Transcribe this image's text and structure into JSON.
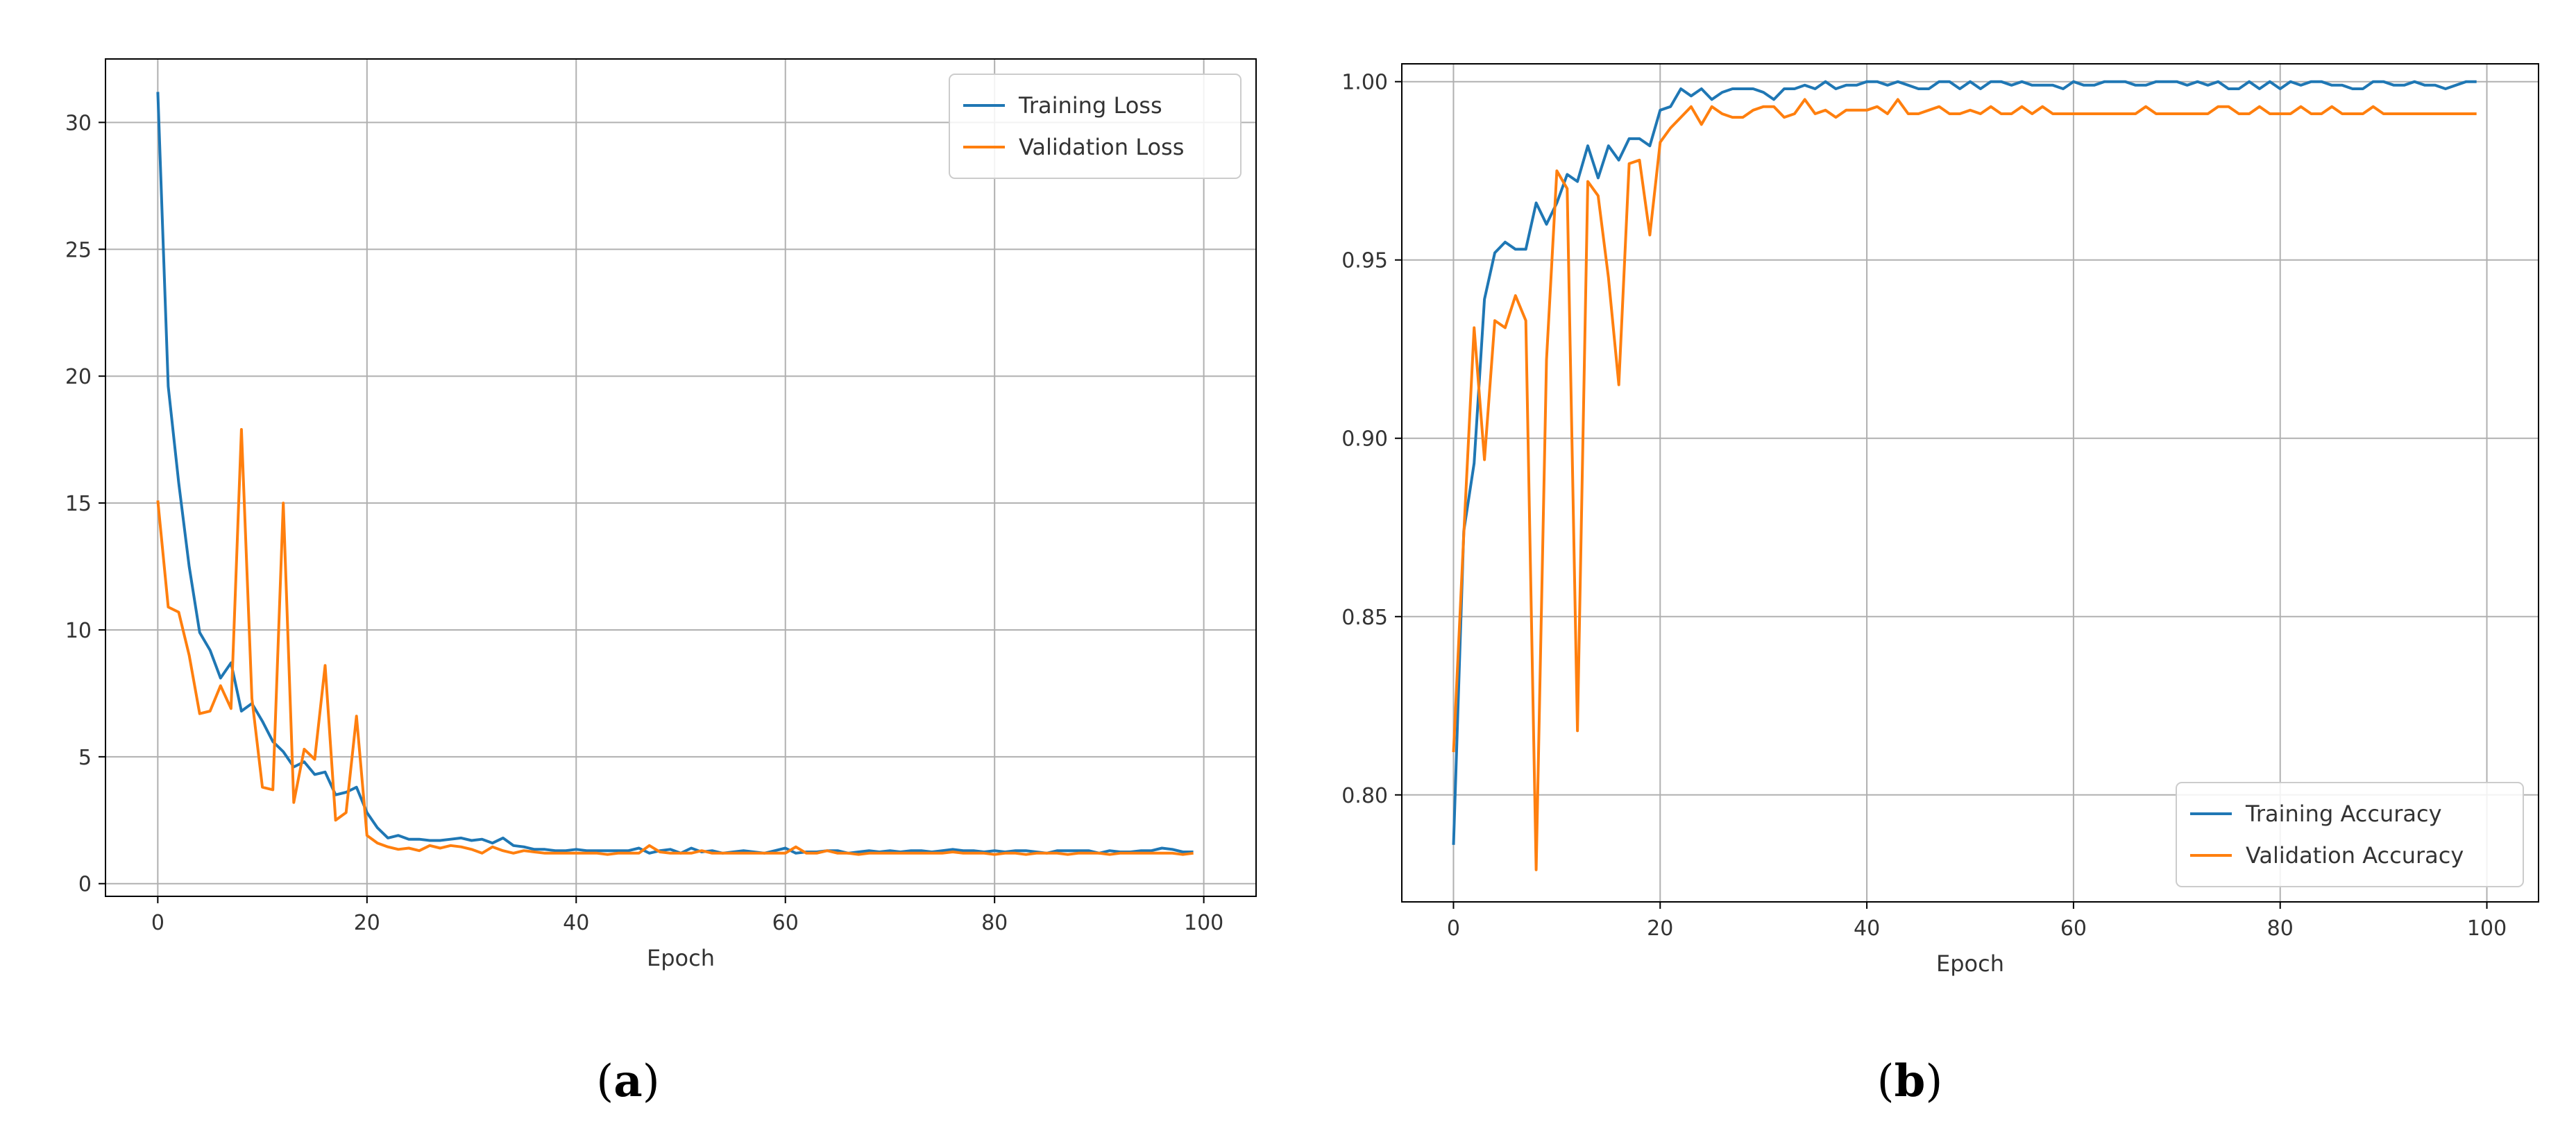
{
  "chart_data": [
    {
      "type": "line",
      "panel_label": "a",
      "title": "",
      "xlabel": "Epoch",
      "ylabel": "",
      "xlim": [
        -5,
        105
      ],
      "ylim": [
        -0.5,
        32.5
      ],
      "xticks": [
        0,
        20,
        40,
        60,
        80,
        100
      ],
      "yticks": [
        0,
        5,
        10,
        15,
        20,
        25,
        30
      ],
      "grid": true,
      "legend": "top-right",
      "x_start": 0,
      "series": [
        {
          "name": "Training Loss",
          "color": "#1f77b4",
          "values": [
            31.2,
            19.6,
            15.8,
            12.5,
            9.9,
            9.2,
            8.1,
            8.7,
            6.8,
            7.1,
            6.4,
            5.6,
            5.2,
            4.6,
            4.8,
            4.3,
            4.4,
            3.5,
            3.6,
            3.8,
            2.8,
            2.2,
            1.8,
            1.9,
            1.75,
            1.75,
            1.7,
            1.7,
            1.75,
            1.8,
            1.7,
            1.75,
            1.6,
            1.8,
            1.5,
            1.45,
            1.35,
            1.35,
            1.3,
            1.3,
            1.35,
            1.3,
            1.3,
            1.3,
            1.3,
            1.3,
            1.4,
            1.2,
            1.3,
            1.35,
            1.2,
            1.4,
            1.25,
            1.3,
            1.2,
            1.25,
            1.3,
            1.25,
            1.2,
            1.3,
            1.4,
            1.2,
            1.25,
            1.25,
            1.3,
            1.3,
            1.2,
            1.25,
            1.3,
            1.25,
            1.3,
            1.25,
            1.3,
            1.3,
            1.25,
            1.3,
            1.35,
            1.3,
            1.3,
            1.25,
            1.3,
            1.25,
            1.3,
            1.3,
            1.25,
            1.2,
            1.3,
            1.3,
            1.3,
            1.3,
            1.2,
            1.3,
            1.25,
            1.25,
            1.3,
            1.3,
            1.4,
            1.35,
            1.25,
            1.25
          ]
        },
        {
          "name": "Validation Loss",
          "color": "#ff7f0e",
          "values": [
            15.1,
            10.9,
            10.7,
            9.0,
            6.7,
            6.8,
            7.8,
            6.9,
            17.9,
            7.3,
            3.8,
            3.7,
            15.0,
            3.2,
            5.3,
            4.9,
            8.6,
            2.5,
            2.8,
            6.6,
            1.9,
            1.6,
            1.45,
            1.35,
            1.4,
            1.3,
            1.5,
            1.4,
            1.5,
            1.45,
            1.35,
            1.2,
            1.45,
            1.3,
            1.2,
            1.3,
            1.25,
            1.2,
            1.2,
            1.2,
            1.2,
            1.2,
            1.2,
            1.15,
            1.2,
            1.2,
            1.2,
            1.5,
            1.25,
            1.2,
            1.2,
            1.2,
            1.3,
            1.2,
            1.2,
            1.2,
            1.2,
            1.2,
            1.2,
            1.2,
            1.2,
            1.45,
            1.2,
            1.2,
            1.3,
            1.2,
            1.2,
            1.15,
            1.2,
            1.2,
            1.2,
            1.2,
            1.2,
            1.2,
            1.2,
            1.2,
            1.25,
            1.2,
            1.2,
            1.2,
            1.15,
            1.2,
            1.2,
            1.15,
            1.2,
            1.2,
            1.2,
            1.15,
            1.2,
            1.2,
            1.2,
            1.15,
            1.2,
            1.2,
            1.2,
            1.2,
            1.2,
            1.2,
            1.15,
            1.2
          ]
        }
      ]
    },
    {
      "type": "line",
      "panel_label": "b",
      "title": "",
      "xlabel": "Epoch",
      "ylabel": "",
      "xlim": [
        -5,
        105
      ],
      "ylim": [
        0.77,
        1.005
      ],
      "xticks": [
        0,
        20,
        40,
        60,
        80,
        100
      ],
      "yticks": [
        0.8,
        0.85,
        0.9,
        0.95,
        1.0
      ],
      "ytick_labels": [
        "0.80",
        "0.85",
        "0.90",
        "0.95",
        "1.00"
      ],
      "grid": true,
      "legend": "bottom-right",
      "x_start": 0,
      "series": [
        {
          "name": "Training Accuracy",
          "color": "#1f77b4",
          "values": [
            0.786,
            0.874,
            0.893,
            0.939,
            0.952,
            0.955,
            0.953,
            0.953,
            0.966,
            0.96,
            0.966,
            0.974,
            0.972,
            0.982,
            0.973,
            0.982,
            0.978,
            0.984,
            0.984,
            0.982,
            0.992,
            0.993,
            0.998,
            0.996,
            0.998,
            0.995,
            0.997,
            0.998,
            0.998,
            0.998,
            0.997,
            0.995,
            0.998,
            0.998,
            0.999,
            0.998,
            1.0,
            0.998,
            0.999,
            0.999,
            1.0,
            1.0,
            0.999,
            1.0,
            0.999,
            0.998,
            0.998,
            1.0,
            1.0,
            0.998,
            1.0,
            0.998,
            1.0,
            1.0,
            0.999,
            1.0,
            0.999,
            0.999,
            0.999,
            0.998,
            1.0,
            0.999,
            0.999,
            1.0,
            1.0,
            1.0,
            0.999,
            0.999,
            1.0,
            1.0,
            1.0,
            0.999,
            1.0,
            0.999,
            1.0,
            0.998,
            0.998,
            1.0,
            0.998,
            1.0,
            0.998,
            1.0,
            0.999,
            1.0,
            1.0,
            0.999,
            0.999,
            0.998,
            0.998,
            1.0,
            1.0,
            0.999,
            0.999,
            1.0,
            0.999,
            0.999,
            0.998,
            0.999,
            1.0,
            1.0
          ]
        },
        {
          "name": "Validation Accuracy",
          "color": "#ff7f0e",
          "values": [
            0.812,
            0.873,
            0.931,
            0.894,
            0.933,
            0.931,
            0.94,
            0.933,
            0.779,
            0.922,
            0.975,
            0.97,
            0.818,
            0.972,
            0.968,
            0.945,
            0.915,
            0.977,
            0.978,
            0.957,
            0.983,
            0.987,
            0.99,
            0.993,
            0.988,
            0.993,
            0.991,
            0.99,
            0.99,
            0.992,
            0.993,
            0.993,
            0.99,
            0.991,
            0.995,
            0.991,
            0.992,
            0.99,
            0.992,
            0.992,
            0.992,
            0.993,
            0.991,
            0.995,
            0.991,
            0.991,
            0.992,
            0.993,
            0.991,
            0.991,
            0.992,
            0.991,
            0.993,
            0.991,
            0.991,
            0.993,
            0.991,
            0.993,
            0.991,
            0.991,
            0.991,
            0.991,
            0.991,
            0.991,
            0.991,
            0.991,
            0.991,
            0.993,
            0.991,
            0.991,
            0.991,
            0.991,
            0.991,
            0.991,
            0.993,
            0.993,
            0.991,
            0.991,
            0.993,
            0.991,
            0.991,
            0.991,
            0.993,
            0.991,
            0.991,
            0.993,
            0.991,
            0.991,
            0.991,
            0.993,
            0.991,
            0.991,
            0.991,
            0.991,
            0.991,
            0.991,
            0.991,
            0.991,
            0.991,
            0.991
          ]
        }
      ]
    }
  ],
  "captions": [
    {
      "open": "(",
      "letter": "a",
      "close": ")"
    },
    {
      "open": "(",
      "letter": "b",
      "close": ")"
    }
  ]
}
